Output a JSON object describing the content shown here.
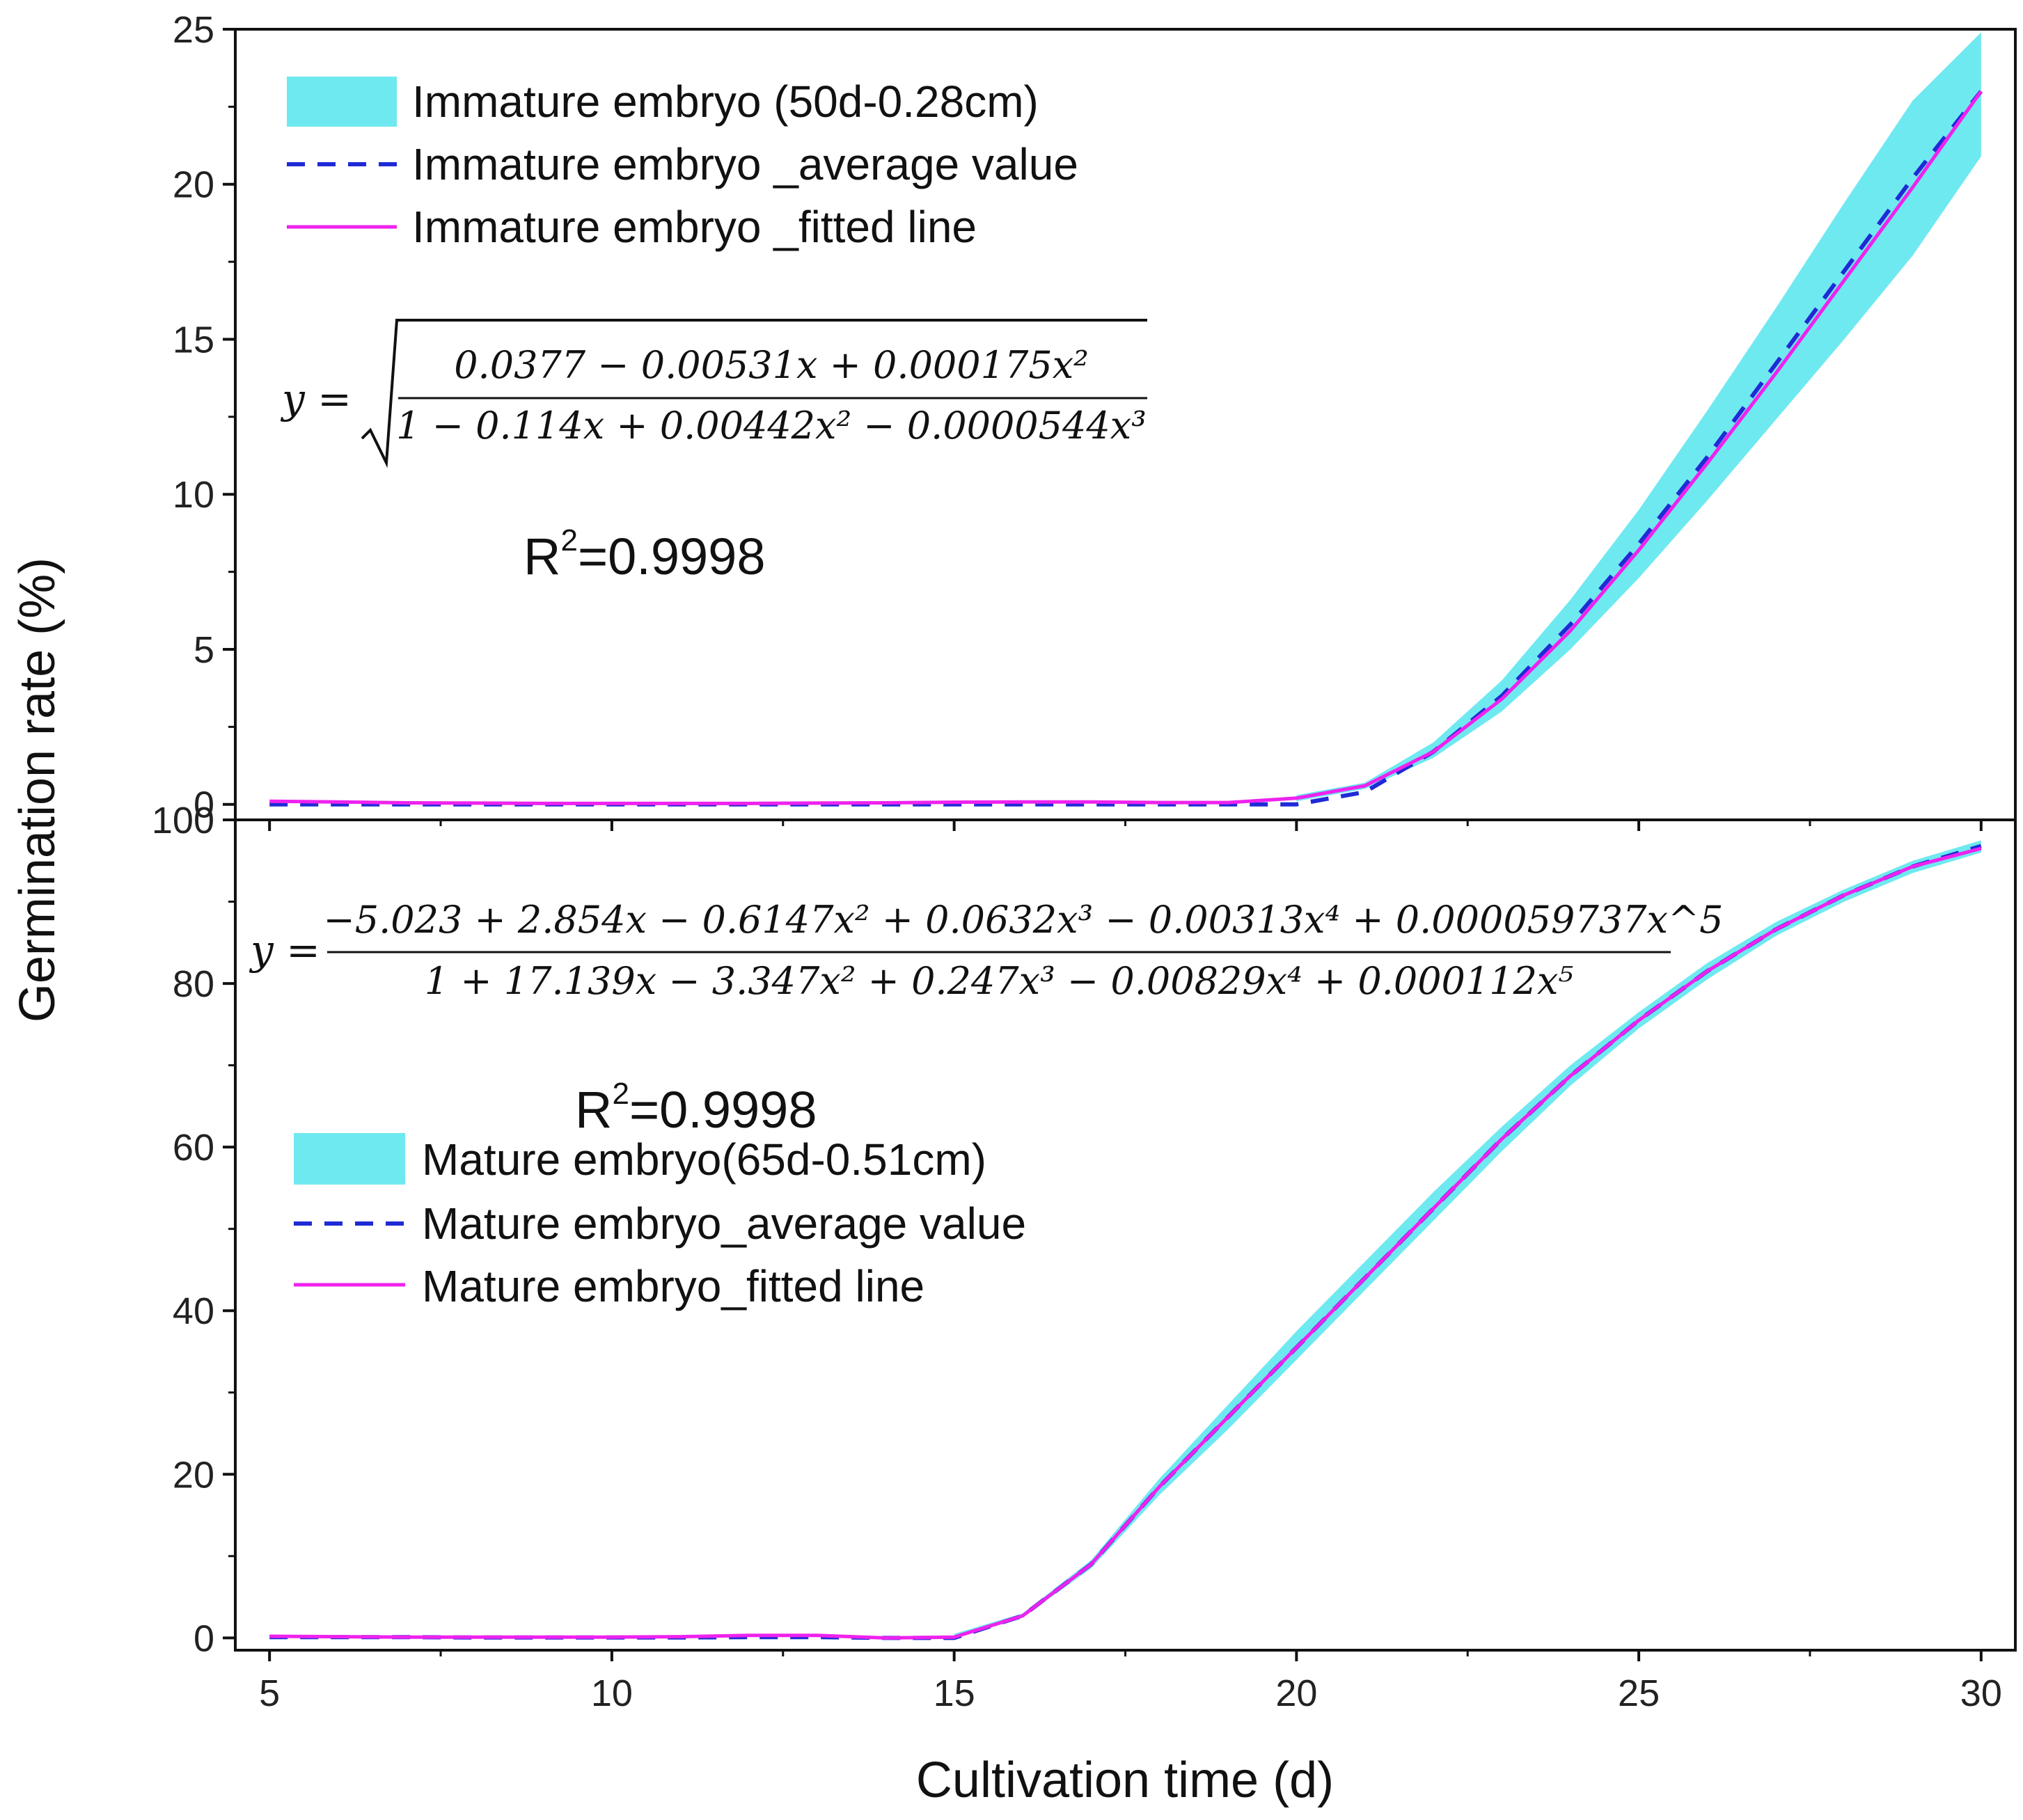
{
  "chart_data": {
    "type": "line",
    "xlabel": "Cultivation time (d)",
    "ylabel": "Germination rate (%)",
    "xlim": [
      4.5,
      30.5
    ],
    "xticks": [
      5,
      10,
      15,
      20,
      25,
      30
    ],
    "xtick_labels": [
      "5",
      "10",
      "15",
      "20",
      "25",
      "30"
    ],
    "panels": [
      {
        "id": "top",
        "ylim": [
          -0.5,
          25
        ],
        "yticks": [
          0,
          5,
          10,
          15,
          20,
          25
        ],
        "ytick_labels": [
          "0",
          "5",
          "10",
          "15",
          "20",
          "25"
        ],
        "legend_position": "top-left",
        "series": [
          {
            "name": "Immature embryo (50d-0.28cm)",
            "kind": "band",
            "color": "#6fe9f0",
            "x": [
              20,
              21,
              22,
              23,
              24,
              25,
              26,
              27,
              28,
              29,
              30
            ],
            "lower": [
              0.1,
              0.5,
              1.5,
              3.0,
              5.0,
              7.3,
              9.8,
              12.4,
              15.0,
              17.7,
              20.9
            ],
            "upper": [
              0.3,
              0.7,
              2.0,
              4.0,
              6.6,
              9.5,
              12.7,
              16.0,
              19.4,
              22.7,
              24.9
            ]
          },
          {
            "name": "Immature embryo _average value",
            "kind": "dashed",
            "color": "#1f2bd6",
            "x": [
              5,
              6,
              7,
              8,
              9,
              10,
              11,
              12,
              13,
              14,
              15,
              16,
              17,
              18,
              19,
              20,
              21,
              22,
              23,
              24,
              25,
              26,
              27,
              28,
              29,
              30
            ],
            "y": [
              0,
              0,
              0,
              0,
              0,
              0,
              0,
              0,
              0,
              0,
              0,
              0,
              0,
              0,
              0,
              0,
              0.4,
              1.7,
              3.5,
              5.8,
              8.4,
              11.2,
              14.2,
              17.2,
              20.2,
              23.0
            ]
          },
          {
            "name": "Immature embryo _fitted line",
            "kind": "solid",
            "color": "#ee22ee",
            "x": [
              5,
              6,
              7,
              8,
              9,
              10,
              11,
              12,
              13,
              14,
              15,
              16,
              17,
              18,
              19,
              20,
              21,
              22,
              23,
              24,
              25,
              26,
              27,
              28,
              29,
              30
            ],
            "y": [
              0.1,
              0.08,
              0.05,
              0.04,
              0.03,
              0.03,
              0.03,
              0.03,
              0.04,
              0.05,
              0.07,
              0.08,
              0.08,
              0.06,
              0.06,
              0.2,
              0.6,
              1.7,
              3.4,
              5.6,
              8.2,
              11.0,
              13.9,
              16.9,
              19.9,
              23.0
            ]
          }
        ],
        "equation": {
          "lhs": "y =",
          "numerator": "0.0377 − 0.00531x + 0.000175x²",
          "denominator": "1 − 0.114x + 0.00442x² − 0.0000544x³"
        },
        "r2": {
          "prefix": "R",
          "sup": "2",
          "value": "=0.9998"
        }
      },
      {
        "id": "bottom",
        "ylim": [
          -1.5,
          100
        ],
        "yticks": [
          0,
          20,
          40,
          60,
          80,
          100
        ],
        "ytick_labels": [
          "0",
          "20",
          "40",
          "60",
          "80",
          "100"
        ],
        "legend_position": "center-left",
        "series": [
          {
            "name": "Mature embryo(65d-0.51cm)",
            "kind": "band",
            "color": "#6fe9f0",
            "x": [
              15,
              16,
              17,
              18,
              19,
              20,
              21,
              22,
              23,
              24,
              25,
              26,
              27,
              28,
              29,
              30
            ],
            "lower": [
              0,
              2.5,
              8.5,
              17.5,
              25.5,
              34.0,
              42.5,
              51.0,
              59.5,
              67.5,
              74.5,
              80.5,
              85.8,
              90.0,
              93.5,
              96.0
            ],
            "upper": [
              0.5,
              3.0,
              9.5,
              19.5,
              28.5,
              37.5,
              46.0,
              54.5,
              62.5,
              70.0,
              76.5,
              82.5,
              87.5,
              91.5,
              95.0,
              97.5
            ]
          },
          {
            "name": "Mature embryo_average value",
            "kind": "dashed",
            "color": "#1f2bd6",
            "x": [
              5,
              6,
              7,
              8,
              9,
              10,
              11,
              12,
              13,
              14,
              15,
              16,
              17,
              18,
              19,
              20,
              21,
              22,
              23,
              24,
              25,
              26,
              27,
              28,
              29,
              30
            ],
            "y": [
              0.1,
              0.1,
              0.1,
              0.05,
              0.05,
              0.05,
              0.05,
              0.1,
              0.1,
              0.0,
              0.0,
              2.7,
              9.0,
              18.5,
              27.0,
              35.5,
              44.0,
              52.5,
              61.0,
              68.7,
              75.5,
              81.5,
              86.6,
              90.8,
              94.3,
              96.8
            ]
          },
          {
            "name": "Mature embryo_fitted line",
            "kind": "solid",
            "color": "#ee22ee",
            "x": [
              5,
              6,
              7,
              8,
              9,
              10,
              11,
              12,
              13,
              14,
              15,
              16,
              17,
              18,
              19,
              20,
              21,
              22,
              23,
              24,
              25,
              26,
              27,
              28,
              29,
              30
            ],
            "y": [
              0.2,
              0.15,
              0.1,
              0.1,
              0.1,
              0.1,
              0.15,
              0.3,
              0.3,
              0.0,
              0.1,
              2.7,
              9.0,
              18.5,
              27.0,
              35.5,
              44.0,
              52.5,
              61.0,
              68.7,
              75.5,
              81.5,
              86.6,
              90.8,
              94.3,
              96.5
            ]
          }
        ],
        "equation": {
          "lhs": "y =",
          "numerator": "−5.023 + 2.854x − 0.6147x² + 0.0632x³ − 0.00313x⁴ + 0.000059737x^5",
          "denominator": "1 + 17.139x − 3.347x² + 0.247x³ − 0.00829x⁴ + 0.000112x⁵"
        },
        "r2": {
          "prefix": "R",
          "sup": "2",
          "value": "=0.9998"
        }
      }
    ]
  }
}
